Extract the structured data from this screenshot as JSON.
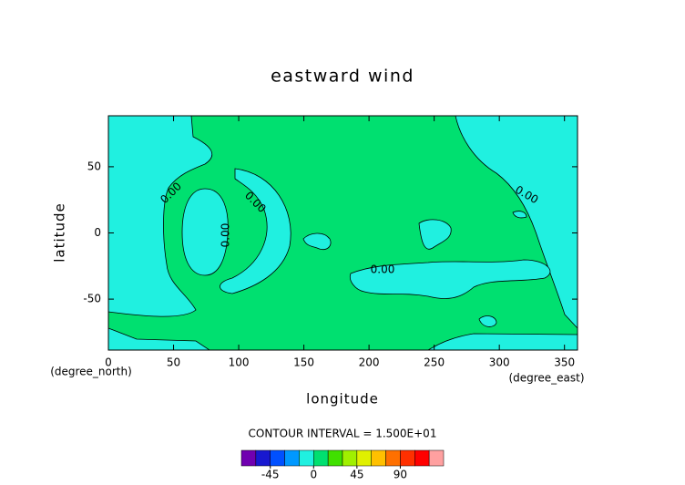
{
  "chart_data": {
    "type": "contour",
    "title": "eastward wind",
    "xlabel": "longitude",
    "ylabel": "latitude",
    "x_unit": "(degree_east)",
    "y_unit": "(degree_north)",
    "xlim": [
      0,
      360
    ],
    "ylim": [
      -88.5,
      88.5
    ],
    "xticks": [
      0,
      50,
      100,
      150,
      200,
      250,
      300,
      350
    ],
    "yticks": [
      -50,
      0,
      50
    ],
    "contour_label": "0.00",
    "contour_interval_text": "CONTOUR INTERVAL = 1.500E+01",
    "levels": [
      -75,
      -60,
      -45,
      -30,
      -15,
      0,
      15,
      30,
      45,
      60,
      75,
      90,
      105,
      120,
      135
    ],
    "level_colors": [
      "#7000b0",
      "#1818d0",
      "#0050ff",
      "#0098ff",
      "#20f0e0",
      "#00e070",
      "#40e000",
      "#a0f000",
      "#e0f000",
      "#ffc000",
      "#ff7000",
      "#ff3000",
      "#ff0000",
      "#ffa0a0"
    ],
    "colorbar_ticks": [
      -45,
      0,
      45,
      90
    ]
  }
}
